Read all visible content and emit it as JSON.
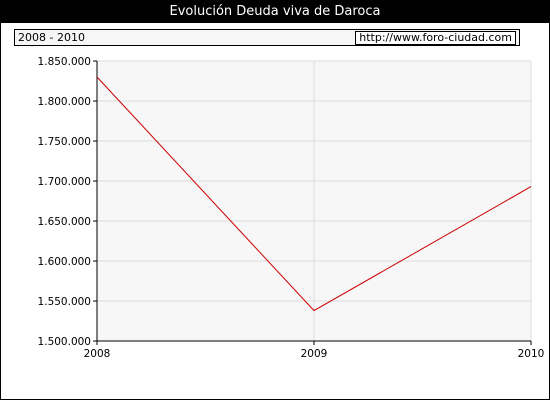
{
  "header": {
    "title": "Evolución Deuda viva de Daroca",
    "period": "2008 - 2010",
    "url": "http://www.foro-ciudad.com"
  },
  "colors": {
    "line": "#cc0000",
    "plot_bg": "#f7f7f7",
    "grid": "#dcdcdc"
  },
  "chart_data": {
    "type": "line",
    "title": "Evolución Deuda viva de Daroca",
    "x": [
      2008,
      2009,
      2010
    ],
    "x_tick_labels": [
      "2008",
      "2009",
      "2010"
    ],
    "y_tick_labels": [
      "1.500.000",
      "1.550.000",
      "1.600.000",
      "1.650.000",
      "1.700.000",
      "1.750.000",
      "1.800.000",
      "1.850.000"
    ],
    "y_ticks": [
      1500000,
      1550000,
      1600000,
      1650000,
      1700000,
      1750000,
      1800000,
      1850000
    ],
    "ylim": [
      1500000,
      1850000
    ],
    "xlim": [
      2008,
      2010
    ],
    "series": [
      {
        "values": [
          1830000,
          1538000,
          1693000
        ]
      }
    ],
    "grid": true,
    "xlabel": "",
    "ylabel": ""
  }
}
